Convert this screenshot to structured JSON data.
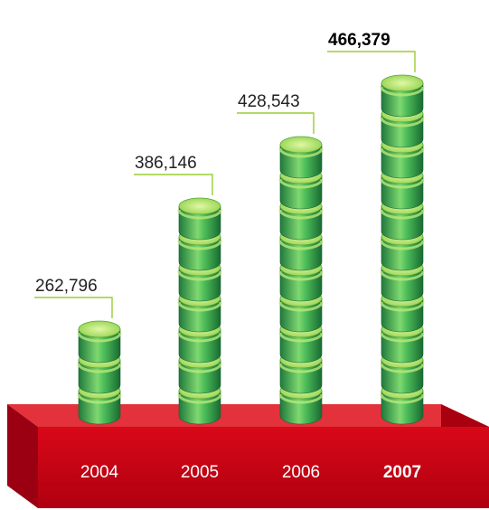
{
  "chart_data": {
    "type": "bar",
    "categories": [
      "2004",
      "2005",
      "2006",
      "2007"
    ],
    "values": [
      262796,
      386146,
      428543,
      466379
    ],
    "value_labels": [
      "262,796",
      "386,146",
      "428,543",
      "466,379"
    ],
    "coins_per_bar": [
      3,
      7,
      9,
      11
    ],
    "highlight_category": "2007",
    "title": "",
    "xlabel": "",
    "ylabel": ""
  },
  "colors": {
    "coin_dark": "#1f7a3c",
    "coin_mid": "#4fbf5a",
    "coin_light": "#c9ef8a",
    "base_front": "#d40014",
    "base_top": "#e8303a",
    "base_side": "#8e0010",
    "leader_line": "#9acd32"
  }
}
